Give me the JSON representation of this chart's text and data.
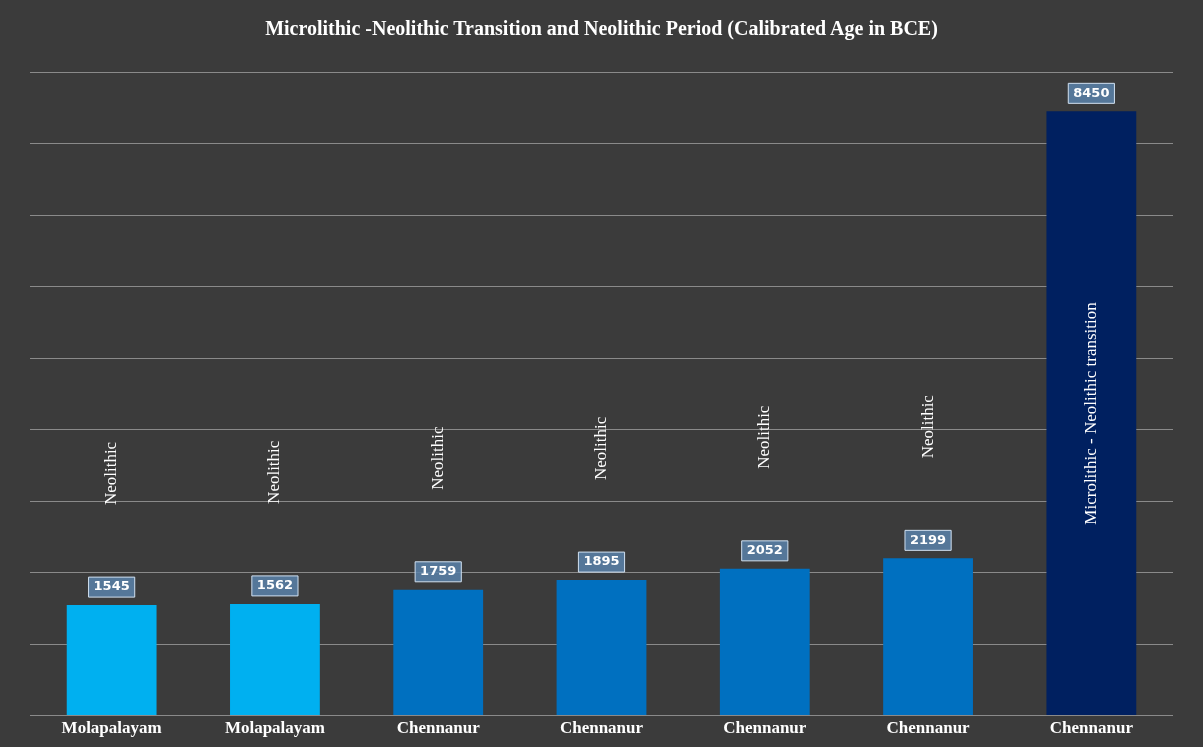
{
  "chart_data": {
    "type": "bar",
    "title": "Microlithic -Neolithic Transition and Neolithic Period (Calibrated Age in BCE)",
    "categories": [
      "Molapalayam",
      "Molapalayam",
      "Chennanur",
      "Chennanur",
      "Chennanur",
      "Chennanur",
      "Chennanur"
    ],
    "values": [
      1545,
      1562,
      1759,
      1895,
      2052,
      2199,
      8450
    ],
    "colors": [
      "#00b0f0",
      "#00b0f0",
      "#0070c0",
      "#0070c0",
      "#0070c0",
      "#0070c0",
      "#002060"
    ],
    "ylim": [
      0,
      9000
    ],
    "yticks": [
      {
        "value": 0,
        "label": null
      },
      {
        "value": 1000,
        "label": null
      },
      {
        "value": 2000,
        "label": null
      },
      {
        "value": 3000,
        "label": null
      },
      {
        "value": 4000,
        "label": null
      },
      {
        "value": 5000,
        "label": null
      },
      {
        "value": 6000,
        "label": null
      },
      {
        "value": 7000,
        "label": null
      },
      {
        "value": 8000,
        "label": null
      },
      {
        "value": 9000,
        "label": null
      }
    ],
    "grid": "y",
    "tick_labels": "x",
    "data_labels": true,
    "annotations": [
      "Neolithic",
      "Neolithic",
      "Neolithic",
      "Neolithic",
      "Neolithic",
      "Neolithic",
      "Microlithic - Neolithic transition"
    ]
  }
}
